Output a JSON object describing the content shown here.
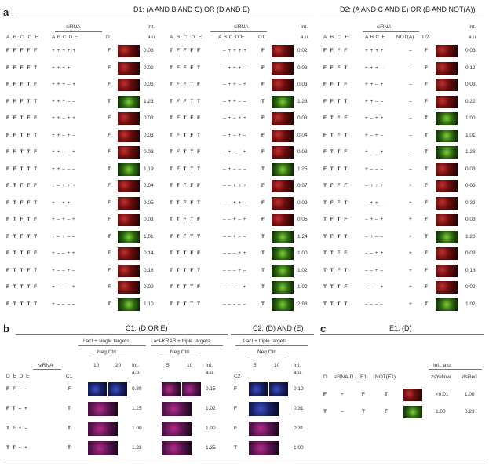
{
  "panel_a": {
    "letter": "a",
    "d1_title": "D1: (A AND B AND C) OR (D AND E)",
    "d2_title": "D2: (A AND C AND E) OR (B AND NOT(A))",
    "siRNA": "siRNA",
    "int": "Int.",
    "au": "a.u.",
    "d1_cols": [
      "A",
      "B",
      "C",
      "D",
      "E"
    ],
    "d1_si": "A B C D E",
    "d1_out": "D1",
    "d2_cols": [
      "A",
      "B",
      "C",
      "E"
    ],
    "d2_si": "A B C E",
    "d2_not": "NOT(A)",
    "d2_out": "D2",
    "g1_rows": [
      {
        "v": "F F F F F",
        "s": "+ + + + +",
        "o": "F",
        "i": "0.03",
        "c": "red"
      },
      {
        "v": "F F F F T",
        "s": "+ + + + –",
        "o": "F",
        "i": "0.02",
        "c": "red"
      },
      {
        "v": "F F F T F",
        "s": "+ + + – +",
        "o": "F",
        "i": "0.03",
        "c": "red"
      },
      {
        "v": "F F F T T",
        "s": "+ + + – –",
        "o": "T",
        "i": "1.23",
        "c": "green"
      },
      {
        "v": "F F T F F",
        "s": "+ + – + +",
        "o": "F",
        "i": "0.03",
        "c": "red"
      },
      {
        "v": "F F T F T",
        "s": "+ + – + –",
        "o": "F",
        "i": "0.03",
        "c": "red"
      },
      {
        "v": "F F T T F",
        "s": "+ + – – +",
        "o": "F",
        "i": "0.03",
        "c": "red"
      },
      {
        "v": "F F T T T",
        "s": "+ + – – –",
        "o": "T",
        "i": "1.19",
        "c": "green"
      },
      {
        "v": "F T F F F",
        "s": "+ – + + +",
        "o": "F",
        "i": "0.04",
        "c": "red"
      },
      {
        "v": "F T F F T",
        "s": "+ – + + –",
        "o": "F",
        "i": "0.05",
        "c": "red"
      },
      {
        "v": "F T F T F",
        "s": "+ – + – +",
        "o": "F",
        "i": "0.03",
        "c": "red"
      },
      {
        "v": "F T F T T",
        "s": "+ – + – –",
        "o": "T",
        "i": "1.01",
        "c": "green"
      },
      {
        "v": "F T T F F",
        "s": "+ – – + +",
        "o": "F",
        "i": "0.14",
        "c": "red"
      },
      {
        "v": "F T T F T",
        "s": "+ – – + –",
        "o": "F",
        "i": "0.18",
        "c": "red"
      },
      {
        "v": "F T T T F",
        "s": "+ – – – +",
        "o": "F",
        "i": "0.09",
        "c": "red"
      },
      {
        "v": "F T T T T",
        "s": "+ – – – –",
        "o": "T",
        "i": "1.10",
        "c": "green"
      }
    ],
    "g2_rows": [
      {
        "v": "T F F F F",
        "s": "– + + + +",
        "o": "F",
        "i": "0.02",
        "c": "red"
      },
      {
        "v": "T F F F T",
        "s": "– + + + –",
        "o": "F",
        "i": "0.03",
        "c": "red"
      },
      {
        "v": "T F F T F",
        "s": "– + + – +",
        "o": "F",
        "i": "0.03",
        "c": "red"
      },
      {
        "v": "T F F T T",
        "s": "– + + – –",
        "o": "T",
        "i": "1.23",
        "c": "green"
      },
      {
        "v": "T F T F F",
        "s": "– + – + +",
        "o": "F",
        "i": "0.03",
        "c": "red"
      },
      {
        "v": "T F T F T",
        "s": "– + – + –",
        "o": "F",
        "i": "0.04",
        "c": "red"
      },
      {
        "v": "T F T T F",
        "s": "– + – – +",
        "o": "F",
        "i": "0.03",
        "c": "red"
      },
      {
        "v": "T F T T T",
        "s": "– + – – –",
        "o": "T",
        "i": "1.25",
        "c": "green"
      },
      {
        "v": "T T F F F",
        "s": "– – + + +",
        "o": "F",
        "i": "0.07",
        "c": "red"
      },
      {
        "v": "T T F F T",
        "s": "– – + + –",
        "o": "F",
        "i": "0.09",
        "c": "red"
      },
      {
        "v": "T T F T F",
        "s": "– – + – +",
        "o": "F",
        "i": "0.05",
        "c": "red"
      },
      {
        "v": "T T F T T",
        "s": "– – + – –",
        "o": "T",
        "i": "1.24",
        "c": "green"
      },
      {
        "v": "T T T F F",
        "s": "– – – + +",
        "o": "T",
        "i": "1.00",
        "c": "green"
      },
      {
        "v": "T T T F T",
        "s": "– – – + –",
        "o": "T",
        "i": "1.02",
        "c": "green"
      },
      {
        "v": "T T T T F",
        "s": "– – – – +",
        "o": "T",
        "i": "1.02",
        "c": "green"
      },
      {
        "v": "T T T T T",
        "s": "– – – – –",
        "o": "T",
        "i": "2.98",
        "c": "green"
      }
    ],
    "g3_rows": [
      {
        "v": "F F F F",
        "s": "+ + + +",
        "n": "–",
        "o": "F",
        "i": "0.03",
        "c": "red"
      },
      {
        "v": "F F F T",
        "s": "+ + + –",
        "n": "–",
        "o": "F",
        "i": "0.12",
        "c": "red"
      },
      {
        "v": "F F T F",
        "s": "+ + – +",
        "n": "–",
        "o": "F",
        "i": "0.03",
        "c": "red"
      },
      {
        "v": "F F T T",
        "s": "+ + – –",
        "n": "–",
        "o": "F",
        "i": "0.22",
        "c": "red"
      },
      {
        "v": "F T F F",
        "s": "+ – + +",
        "n": "–",
        "o": "T",
        "i": "1.00",
        "c": "green"
      },
      {
        "v": "F T F T",
        "s": "+ – + –",
        "n": "–",
        "o": "T",
        "i": "1.01",
        "c": "green"
      },
      {
        "v": "F T T F",
        "s": "+ – – +",
        "n": "–",
        "o": "T",
        "i": "1.28",
        "c": "green"
      },
      {
        "v": "F T T T",
        "s": "+ – – –",
        "n": "–",
        "o": "T",
        "i": "0.03",
        "c": "red"
      },
      {
        "v": "T F F F",
        "s": "– + + +",
        "n": "+",
        "o": "F",
        "i": "0.03",
        "c": "red"
      },
      {
        "v": "T F F T",
        "s": "– + + –",
        "n": "+",
        "o": "F",
        "i": "0.32",
        "c": "red"
      },
      {
        "v": "T F T F",
        "s": "– + – +",
        "n": "+",
        "o": "F",
        "i": "0.03",
        "c": "red"
      },
      {
        "v": "T F T T",
        "s": "– + – –",
        "n": "+",
        "o": "T",
        "i": "1.20",
        "c": "green"
      },
      {
        "v": "T T F F",
        "s": "– – + +",
        "n": "+",
        "o": "F",
        "i": "0.03",
        "c": "red"
      },
      {
        "v": "T T F T",
        "s": "– – + –",
        "n": "+",
        "o": "F",
        "i": "0.18",
        "c": "red"
      },
      {
        "v": "T T T F",
        "s": "– – – +",
        "n": "+",
        "o": "F",
        "i": "0.02",
        "c": "red"
      },
      {
        "v": "T T T T",
        "s": "– – – –",
        "n": "+",
        "o": "T",
        "i": "1.02",
        "c": "green"
      }
    ]
  },
  "panel_b": {
    "letter": "b",
    "c1_title": "C1: (D OR E)",
    "c2_title": "C2: (D) AND (E)",
    "lacl_single": "LacI + single targets",
    "lacl_krab": "LacI-KRAB + triple targets",
    "lacl_triple": "LacI + triple targets",
    "neg_ctrl": "Neg Ctrl",
    "siRNA": "siRNA",
    "cols": "D  E  D  E",
    "c1": "C1",
    "c2": "C2",
    "dose1": [
      "10",
      "20"
    ],
    "dose2": [
      "5",
      "10"
    ],
    "dose3": [
      "5",
      "10"
    ],
    "int": "Int.",
    "au": "a.u.",
    "rows": [
      {
        "v": "F  F  –  –",
        "c1": "F",
        "i1": "0.30",
        "i2": "0.15",
        "c2": "F",
        "i3": "0.12"
      },
      {
        "v": "F  T  –  +",
        "c1": "T",
        "i1": "1.25",
        "i2": "1.02",
        "c2": "F",
        "i3": "0.31"
      },
      {
        "v": "T  F  +  –",
        "c1": "T",
        "i1": "1.00",
        "i2": "1.00",
        "c2": "F",
        "i3": "0.31"
      },
      {
        "v": "T  T  +  +",
        "c1": "T",
        "i1": "1.23",
        "i2": "1.35",
        "c2": "T",
        "i3": "1.00"
      }
    ]
  },
  "panel_c": {
    "letter": "c",
    "title": "E1: (D)",
    "h_d": "D",
    "h_si": "siRNA-D",
    "h_e1": "E1",
    "h_not": "NOT(E1)",
    "h_int": "Int., a.u.",
    "h_zs": "zsYellow",
    "h_ds": "dsRed",
    "rows": [
      {
        "d": "F",
        "si": "+",
        "e1": "F",
        "not": "T",
        "zs": "<0.01",
        "ds": "1.00",
        "c": "red"
      },
      {
        "d": "T",
        "si": "–",
        "e1": "T",
        "not": "F",
        "zs": "1.00",
        "ds": "0.23",
        "c": "green"
      }
    ]
  }
}
